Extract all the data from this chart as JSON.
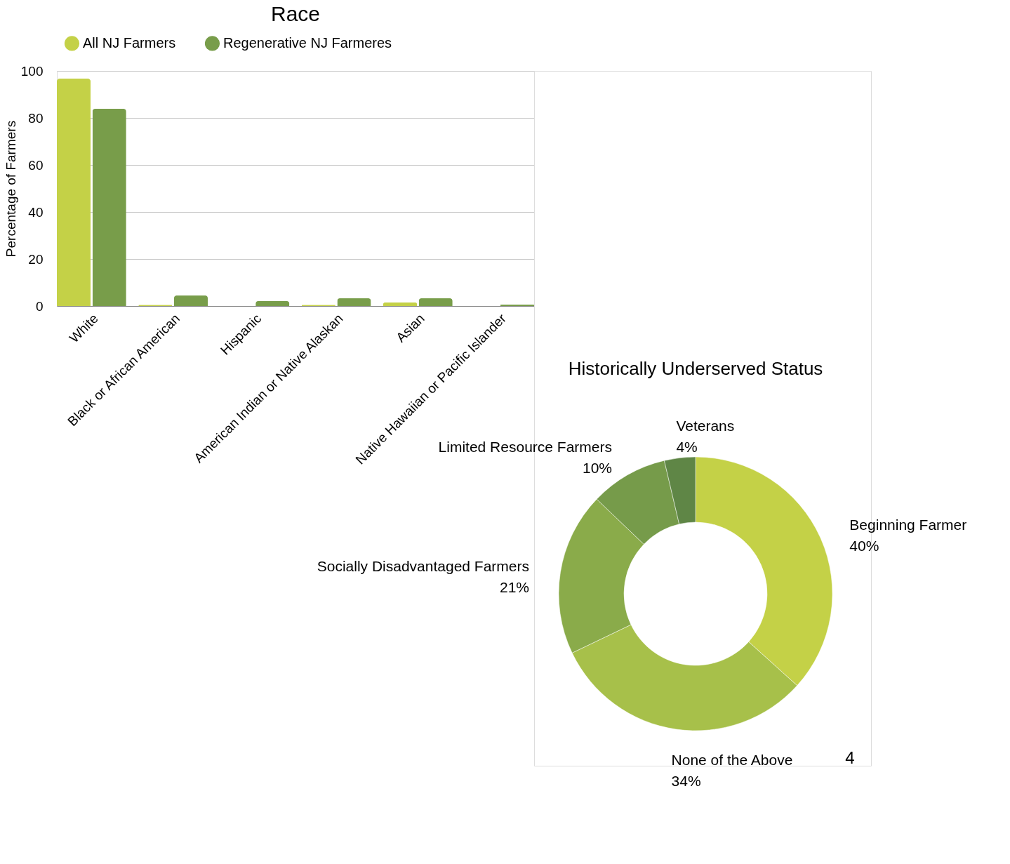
{
  "chart_data": [
    {
      "type": "bar",
      "title": "Race",
      "ylabel": "Percentage of Farmers",
      "categories": [
        "White",
        "Black or African American",
        "Hispanic",
        "American Indian or Native Alaskan",
        "Asian",
        "Native Hawaiian or Pacific Islander"
      ],
      "series": [
        {
          "name": "All NJ Farmers",
          "color": "#c4d147",
          "values": [
            96.7,
            0.5,
            0,
            0.5,
            1.5,
            0
          ]
        },
        {
          "name": "Regenerative NJ Farmeres",
          "color": "#789d4a",
          "values": [
            83.9,
            4.5,
            2.1,
            3.3,
            3.3,
            0.6
          ]
        }
      ],
      "ylim": [
        0,
        100
      ],
      "yticks": [
        0,
        20,
        40,
        60,
        80,
        100
      ],
      "grid": "y",
      "legend": "top"
    },
    {
      "type": "donut",
      "title": "Historically Underserved Status",
      "categories": [
        "Beginning Farmer",
        "None of the Above",
        "Socially Disadvantaged Farmers",
        "Limited Resource Farmers",
        "Veterans"
      ],
      "values": [
        40,
        34,
        21,
        10,
        4
      ],
      "colors": [
        "#c4d147",
        "#a7c04a",
        "#8aab4a",
        "#769b4a",
        "#5f8646"
      ],
      "value_labels": [
        "40%",
        "34%",
        "21%",
        "10%",
        "4%"
      ],
      "annotations": [
        "4"
      ]
    }
  ]
}
